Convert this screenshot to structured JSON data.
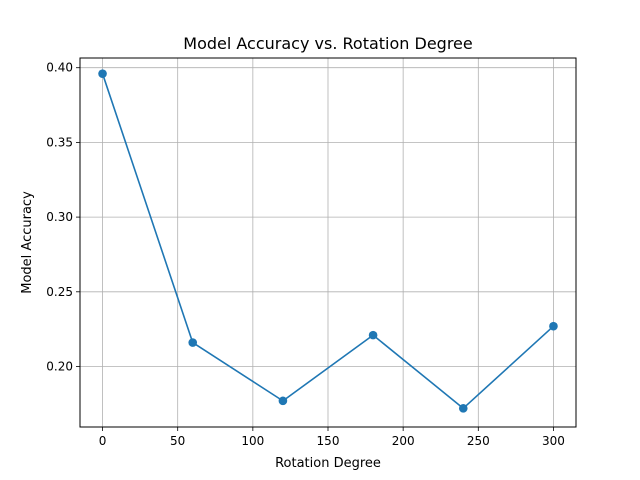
{
  "chart_data": {
    "type": "line",
    "title": "Model Accuracy vs. Rotation Degree",
    "xlabel": "Rotation Degree",
    "ylabel": "Model Accuracy",
    "x": [
      0,
      60,
      120,
      180,
      240,
      300
    ],
    "series": [
      {
        "values": [
          0.396,
          0.216,
          0.177,
          0.221,
          0.172,
          0.227
        ],
        "color": "#1f77b4",
        "marker": "circle"
      }
    ],
    "xlim": [
      -15,
      315
    ],
    "ylim": [
      0.1595,
      0.4065
    ],
    "xticks": [
      0,
      50,
      100,
      150,
      200,
      250,
      300
    ],
    "xtick_labels": [
      "0",
      "50",
      "100",
      "150",
      "200",
      "250",
      "300"
    ],
    "yticks": [
      0.2,
      0.25,
      0.3,
      0.35,
      0.4
    ],
    "ytick_labels": [
      "0.20",
      "0.25",
      "0.30",
      "0.35",
      "0.40"
    ],
    "grid": true,
    "legend": "none"
  }
}
